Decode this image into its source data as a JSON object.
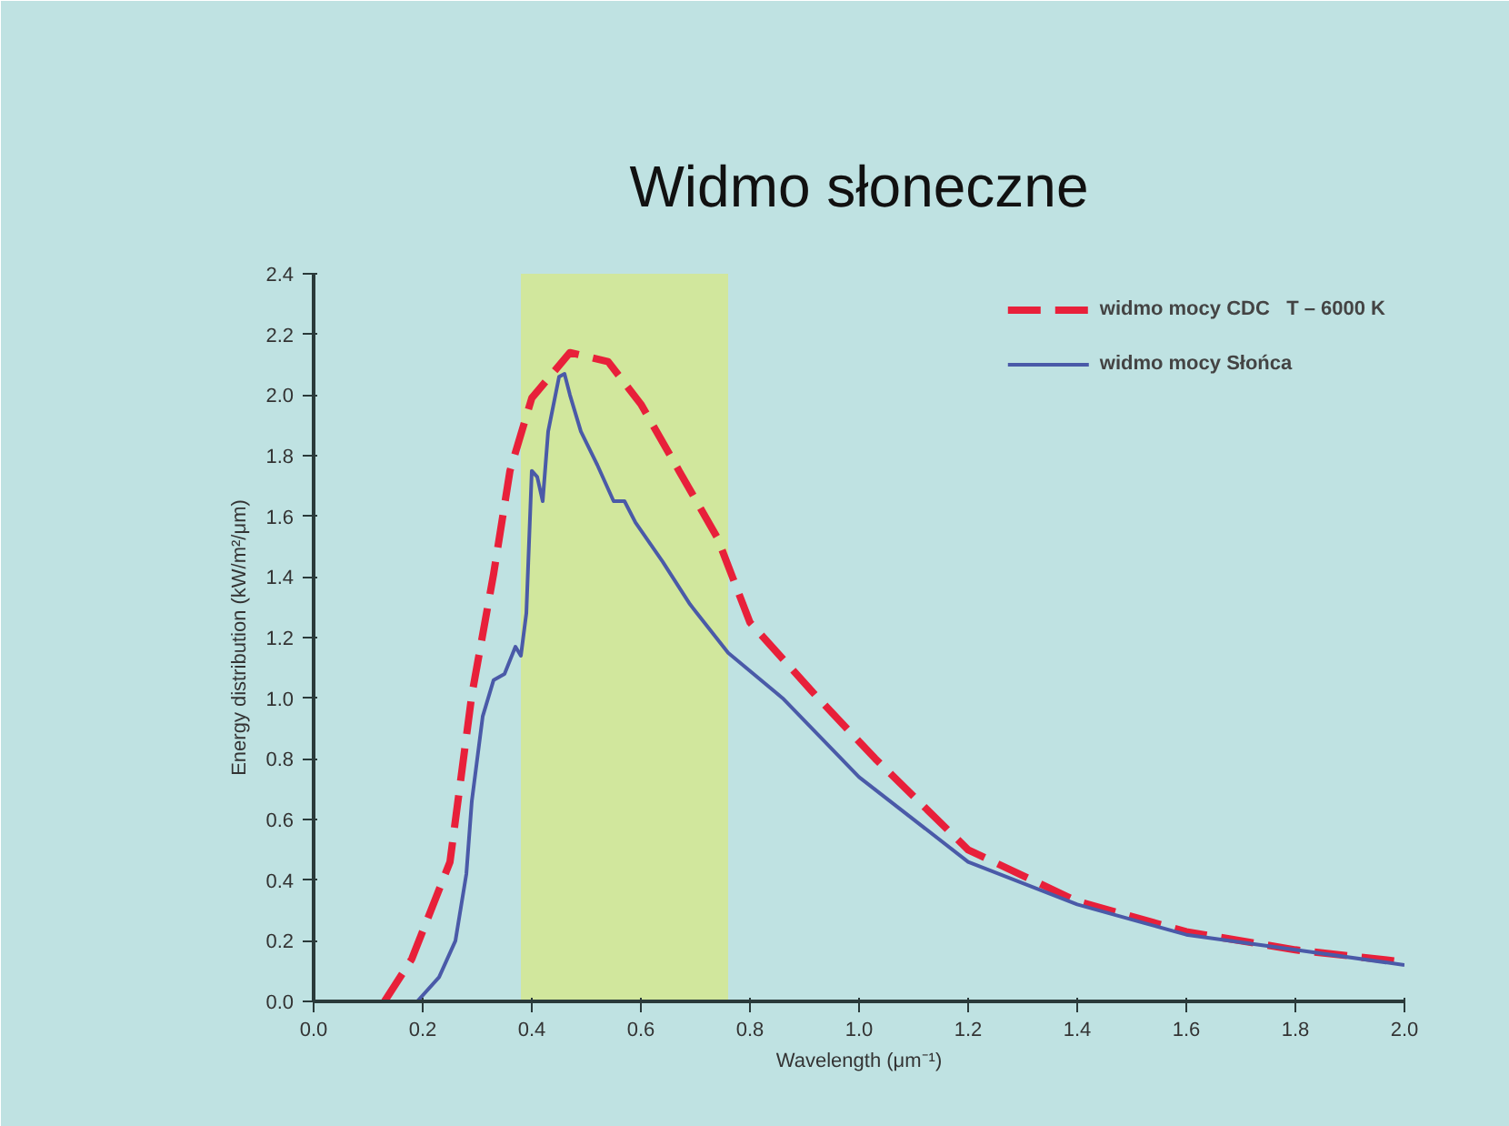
{
  "chart_data": {
    "type": "line",
    "title": "Widmo słoneczne",
    "xlabel": "Wavelength (μm⁻¹)",
    "ylabel": "Energy distribution (kW/m²/μm)",
    "xlim": [
      0,
      2.0
    ],
    "ylim": [
      0,
      2.4
    ],
    "xticks": [
      {
        "value": 0,
        "label": "0.0"
      },
      0.2,
      0.4,
      0.6,
      0.8,
      {
        "value": 1,
        "label": "1.0"
      },
      1.2,
      1.4,
      1.6,
      1.8,
      {
        "value": 2,
        "label": "2.0"
      }
    ],
    "yticks": [
      {
        "value": 0,
        "label": "0.0"
      },
      0.2,
      0.4,
      0.6,
      0.8,
      {
        "value": 1,
        "label": "1.0"
      },
      1.2,
      1.4,
      1.6,
      1.8,
      {
        "value": 2,
        "label": "2.0"
      },
      2.2,
      2.4
    ],
    "grid": false,
    "legend": "top right",
    "bands": [
      {
        "axis": "x",
        "from": 0.38,
        "to": 0.76,
        "color": "#d6e88c"
      }
    ],
    "series": [
      {
        "name": "widmo mocy CDC   T – 6000 K",
        "color": "#e8203a",
        "line_style": "dashed",
        "x": [
          0.13,
          0.18,
          0.25,
          0.29,
          0.33,
          0.36,
          0.4,
          0.47,
          0.54,
          0.6,
          0.67,
          0.74,
          0.8,
          0.92,
          1.03,
          1.2,
          1.4,
          1.6,
          1.8,
          2.0
        ],
        "values": [
          0,
          0.14,
          0.46,
          1.01,
          1.41,
          1.75,
          1.99,
          2.14,
          2.11,
          1.97,
          1.75,
          1.53,
          1.25,
          1.01,
          0.8,
          0.5,
          0.33,
          0.23,
          0.17,
          0.13
        ]
      },
      {
        "name": "widmo mocy Słońca",
        "color": "#4a5aa8",
        "line_style": "solid",
        "x": [
          0.19,
          0.23,
          0.26,
          0.28,
          0.29,
          0.31,
          0.33,
          0.35,
          0.37,
          0.38,
          0.39,
          0.4,
          0.41,
          0.42,
          0.43,
          0.45,
          0.46,
          0.47,
          0.49,
          0.52,
          0.55,
          0.57,
          0.59,
          0.64,
          0.69,
          0.76,
          0.86,
          1.0,
          1.2,
          1.4,
          1.6,
          1.8,
          2.0
        ],
        "values": [
          0,
          0.08,
          0.2,
          0.42,
          0.66,
          0.94,
          1.06,
          1.08,
          1.17,
          1.14,
          1.28,
          1.75,
          1.73,
          1.65,
          1.88,
          2.06,
          2.07,
          2.0,
          1.88,
          1.77,
          1.65,
          1.65,
          1.58,
          1.45,
          1.31,
          1.15,
          1.0,
          0.74,
          0.46,
          0.32,
          0.22,
          0.17,
          0.12
        ]
      }
    ]
  }
}
